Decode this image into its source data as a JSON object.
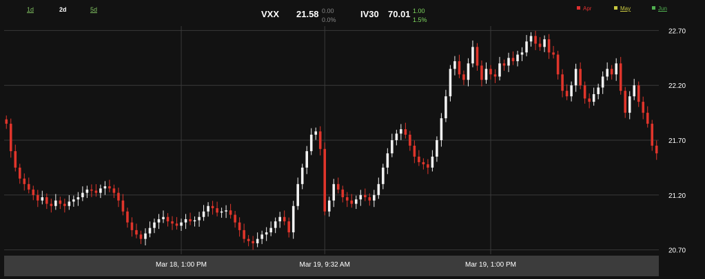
{
  "ranges": [
    {
      "label": "1d",
      "active": false
    },
    {
      "label": "2d",
      "active": true
    },
    {
      "label": "5d",
      "active": false
    }
  ],
  "quotes": {
    "vxx": {
      "symbol": "VXX",
      "price": "21.58",
      "change": "0.00",
      "change_pct": "0.0%"
    },
    "iv30": {
      "symbol": "IV30",
      "price": "70.01",
      "change": "1.00",
      "change_pct": "1.5%"
    }
  },
  "legend": [
    {
      "label": "Apr",
      "color": "#e03030",
      "underline": false
    },
    {
      "label": "May",
      "color": "#c8c840",
      "underline": true
    },
    {
      "label": "Jun",
      "color": "#50b050",
      "underline": true
    }
  ],
  "colors": {
    "up": "#f2f2f2",
    "down": "#e0352b",
    "grid": "#3a3a3a",
    "axis_band": "#3c3c3c",
    "change_neutral": "#888888",
    "change_up": "#7fd860"
  },
  "chart_data": {
    "type": "candlestick",
    "y_ticks": [
      "20.70",
      "21.20",
      "21.70",
      "22.20",
      "22.70"
    ],
    "ylim": [
      20.66,
      22.74
    ],
    "x_ticks": [
      {
        "label": "Mar 18, 1:00 PM",
        "index": 39
      },
      {
        "label": "Mar 19, 9:32 AM",
        "index": 71
      },
      {
        "label": "Mar 19, 1:00 PM",
        "index": 108
      }
    ],
    "grid": true,
    "closes": [
      21.85,
      21.6,
      21.45,
      21.35,
      21.3,
      21.25,
      21.2,
      21.15,
      21.18,
      21.12,
      21.1,
      21.15,
      21.12,
      21.1,
      21.14,
      21.16,
      21.18,
      21.22,
      21.25,
      21.24,
      21.22,
      21.26,
      21.28,
      21.26,
      21.22,
      21.15,
      21.05,
      20.95,
      20.88,
      20.84,
      20.8,
      20.85,
      20.9,
      20.95,
      20.98,
      21.0,
      20.96,
      20.94,
      20.92,
      20.95,
      20.98,
      20.96,
      20.97,
      21.0,
      21.05,
      21.1,
      21.08,
      21.04,
      21.05,
      21.06,
      21.02,
      20.95,
      20.88,
      20.8,
      20.78,
      20.76,
      20.8,
      20.84,
      20.86,
      20.9,
      20.96,
      21.0,
      20.96,
      20.86,
      21.1,
      21.3,
      21.45,
      21.6,
      21.75,
      21.78,
      21.62,
      21.05,
      21.15,
      21.3,
      21.25,
      21.18,
      21.15,
      21.12,
      21.16,
      21.2,
      21.18,
      21.15,
      21.2,
      21.3,
      21.45,
      21.58,
      21.7,
      21.76,
      21.8,
      21.75,
      21.65,
      21.55,
      21.5,
      21.48,
      21.45,
      21.55,
      21.7,
      21.9,
      22.1,
      22.35,
      22.42,
      22.3,
      22.25,
      22.4,
      22.55,
      22.38,
      22.25,
      22.35,
      22.3,
      22.28,
      22.4,
      22.38,
      22.45,
      22.42,
      22.48,
      22.5,
      22.6,
      22.65,
      22.58,
      22.55,
      22.62,
      22.5,
      22.48,
      22.3,
      22.15,
      22.1,
      22.2,
      22.35,
      22.2,
      22.08,
      22.05,
      22.12,
      22.18,
      22.28,
      22.35,
      22.3,
      22.4,
      22.15,
      21.95,
      22.1,
      22.2,
      22.05,
      21.95,
      21.85,
      21.65,
      21.58
    ]
  }
}
